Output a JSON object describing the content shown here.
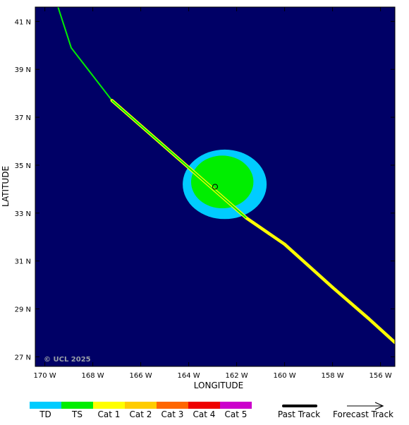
{
  "map": {
    "background_color": "#000066",
    "copyright": "© UCL 2025",
    "x_axis_title": "LONGITUDE",
    "y_axis_title": "LATITUDE",
    "lon_ticks": [
      {
        "value": -170,
        "label": "170 W"
      },
      {
        "value": -168,
        "label": "168 W"
      },
      {
        "value": -166,
        "label": "166 W"
      },
      {
        "value": -164,
        "label": "164 W"
      },
      {
        "value": -162,
        "label": "162 W"
      },
      {
        "value": -160,
        "label": "160 W"
      },
      {
        "value": -158,
        "label": "158 W"
      },
      {
        "value": -156,
        "label": "156 W"
      }
    ],
    "lat_ticks": [
      {
        "value": 41,
        "label": "41 N"
      },
      {
        "value": 39,
        "label": "39 N"
      },
      {
        "value": 37,
        "label": "37 N"
      },
      {
        "value": 35,
        "label": "35 N"
      },
      {
        "value": 33,
        "label": "33 N"
      },
      {
        "value": 31,
        "label": "31 N"
      },
      {
        "value": 29,
        "label": "29 N"
      },
      {
        "value": 27,
        "label": "27 N"
      }
    ],
    "lon_range": [
      -170.4,
      -155.4
    ],
    "lat_range": [
      26.6,
      41.6
    ]
  },
  "storm": {
    "center": {
      "lon": -162.9,
      "lat": 34.1
    },
    "wind_fields": [
      {
        "category": "TD",
        "color": "#00ccff",
        "lon": -162.5,
        "lat": 34.2,
        "radius_lon": 3.5,
        "radius_lat": 2.9
      },
      {
        "category": "TS",
        "color": "#00ee00",
        "lon": -162.6,
        "lat": 34.3,
        "radius_lon": 2.6,
        "radius_lat": 2.2
      }
    ],
    "track": [
      {
        "lon": -169.45,
        "lat": 41.6,
        "color": "#00ccff"
      },
      {
        "lon": -168.9,
        "lat": 39.9,
        "color": "#00ee00"
      },
      {
        "lon": -167.2,
        "lat": 37.7,
        "color": "#00ee00"
      },
      {
        "lon": -161.6,
        "lat": 32.8,
        "color": "#ffff00"
      },
      {
        "lon": -160.0,
        "lat": 31.7,
        "color": "#ffff00"
      },
      {
        "lon": -158.0,
        "lat": 29.9,
        "color": "#ffff00"
      },
      {
        "lon": -156.5,
        "lat": 28.6,
        "color": "#ffff00"
      },
      {
        "lon": -155.4,
        "lat": 27.6,
        "color": "#ffff00"
      }
    ]
  },
  "legend": {
    "categories": [
      {
        "label": "TD",
        "color": "#00ccff"
      },
      {
        "label": "TS",
        "color": "#00ee00"
      },
      {
        "label": "Cat 1",
        "color": "#ffff00"
      },
      {
        "label": "Cat 2",
        "color": "#ffcc00"
      },
      {
        "label": "Cat 3",
        "color": "#ff6600"
      },
      {
        "label": "Cat 4",
        "color": "#ee0000"
      },
      {
        "label": "Cat 5",
        "color": "#cc00cc"
      }
    ],
    "past_track_label": "Past Track",
    "forecast_track_label": "Forecast Track"
  }
}
